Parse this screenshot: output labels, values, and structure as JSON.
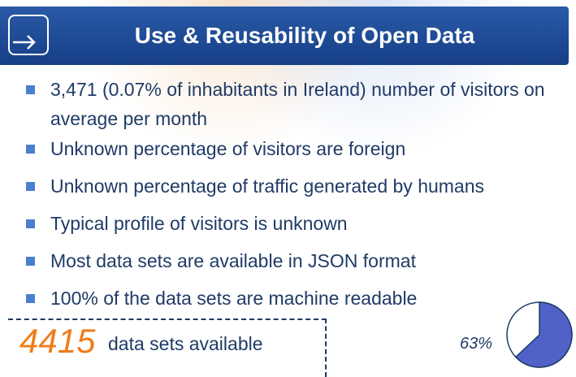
{
  "header": {
    "title": "Use & Reusability of Open Data"
  },
  "bullets": [
    "3,471 (0.07% of inhabitants in Ireland) number of visitors on average per month",
    "Unknown percentage of visitors are foreign",
    "Unknown percentage of traffic generated by humans",
    "Typical profile of visitors is unknown",
    "Most data sets are available in JSON format",
    "100% of the data sets are machine readable"
  ],
  "stat": {
    "number": "4415",
    "text": "data sets available"
  },
  "chart_data": {
    "type": "pie",
    "values": [
      63
    ],
    "value_labels": [
      "63%"
    ],
    "color": "#5061c8"
  }
}
